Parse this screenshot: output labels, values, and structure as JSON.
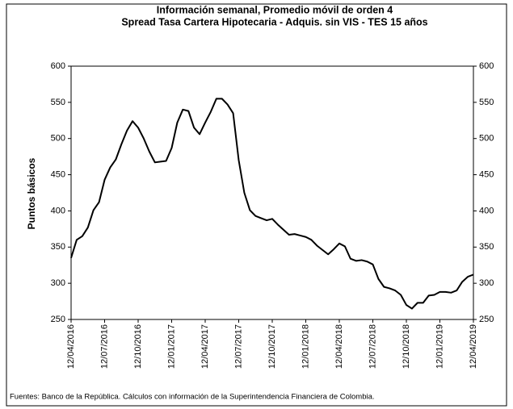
{
  "chart_data": {
    "type": "line",
    "title": "Información semanal, Promedio móvil de orden 4",
    "subtitle": "Spread Tasa Cartera Hipotecaria - Adquis. sin VIS -  TES 15 años",
    "y_label": "Puntos básicos",
    "source": "Fuentes: Banco de la República. Cálculos con información de la Superintendencia Financiera de Colombia.",
    "categories": [
      "12/04/2016",
      null,
      null,
      null,
      null,
      null,
      "12/07/2016",
      null,
      null,
      null,
      null,
      null,
      "12/10/2016",
      null,
      null,
      null,
      null,
      null,
      "12/01/2017",
      null,
      null,
      null,
      null,
      null,
      "12/04/2017",
      null,
      null,
      null,
      null,
      null,
      "12/07/2017",
      null,
      null,
      null,
      null,
      null,
      "12/10/2017",
      null,
      null,
      null,
      null,
      null,
      "12/01/2018",
      null,
      null,
      null,
      null,
      null,
      "12/04/2018",
      null,
      null,
      null,
      null,
      null,
      "12/07/2018",
      null,
      null,
      null,
      null,
      null,
      "12/10/2018",
      null,
      null,
      null,
      null,
      null,
      "12/01/2019",
      null,
      null,
      null,
      null,
      null,
      "12/04/2019"
    ],
    "series": [
      {
        "color": "#000000",
        "values": [
          335,
          360,
          365,
          377,
          401,
          412,
          443,
          460,
          471,
          492,
          511,
          524,
          515,
          500,
          482,
          467,
          468,
          469,
          487,
          522,
          540,
          538,
          515,
          506,
          522,
          537,
          555,
          555,
          547,
          535,
          470,
          425,
          401,
          393,
          390,
          387,
          389,
          381,
          374,
          367,
          368,
          366,
          364,
          360,
          352,
          346,
          340,
          347,
          355,
          351,
          334,
          331,
          332,
          330,
          326,
          306,
          295,
          293,
          290,
          284,
          270,
          265,
          273,
          273,
          283,
          284,
          288,
          288,
          287,
          290,
          302,
          309,
          312
        ]
      }
    ],
    "ylim": [
      250,
      600
    ],
    "yticks": [
      250,
      300,
      350,
      400,
      450,
      500,
      550,
      600
    ],
    "y2lim": [
      250,
      600
    ],
    "y2ticks": [
      250,
      300,
      350,
      400,
      450,
      500,
      550,
      600
    ],
    "grid": false
  }
}
